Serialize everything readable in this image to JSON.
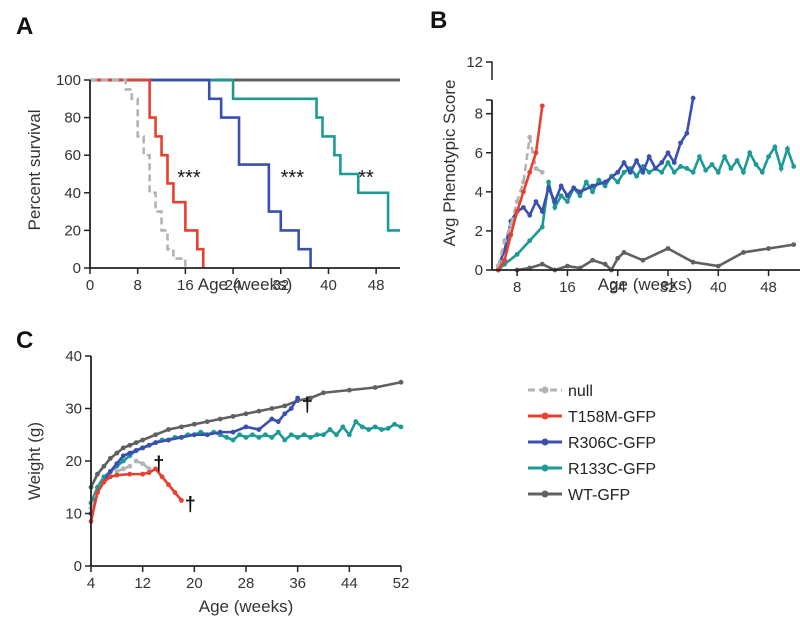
{
  "colors": {
    "null": "#b3b3b3",
    "T158M": "#e8402f",
    "R306C": "#3a4fb0",
    "R133C": "#1d9a96",
    "WT": "#606060"
  },
  "legend": [
    {
      "key": "null",
      "label": "null",
      "dashed": true
    },
    {
      "key": "T158M",
      "label": "T158M-GFP",
      "dashed": false
    },
    {
      "key": "R306C",
      "label": "R306C-GFP",
      "dashed": false
    },
    {
      "key": "R133C",
      "label": "R133C-GFP",
      "dashed": false
    },
    {
      "key": "WT",
      "label": "WT-GFP",
      "dashed": false
    }
  ],
  "chart_data": [
    {
      "panel": "A",
      "type": "line",
      "subtype": "kaplan-meier step",
      "xlabel": "Age (weeks)",
      "ylabel": "Percent survival",
      "xlim": [
        0,
        52
      ],
      "ylim": [
        0,
        100
      ],
      "xticks": [
        "0",
        "8",
        "16",
        "24",
        "32",
        "40",
        "48"
      ],
      "yticks": [
        "0",
        "20",
        "40",
        "60",
        "80",
        "100"
      ],
      "grid": false,
      "annotations": [
        {
          "text": "***",
          "x": 17.5,
          "y": 52
        },
        {
          "text": "***",
          "x": 35,
          "y": 52
        },
        {
          "text": "**",
          "x": 47,
          "y": 52
        }
      ],
      "series": [
        {
          "key": "null",
          "dashed": true,
          "x": [
            0,
            4,
            6,
            7,
            8,
            9,
            10,
            11,
            12,
            13,
            14,
            16
          ],
          "y": [
            100,
            100,
            95,
            90,
            70,
            60,
            40,
            30,
            20,
            10,
            5,
            0
          ]
        },
        {
          "key": "T158M",
          "dashed": false,
          "x": [
            0,
            9,
            10,
            11,
            12,
            13,
            14,
            16,
            18,
            19
          ],
          "y": [
            100,
            100,
            80,
            70,
            60,
            45,
            35,
            20,
            10,
            0
          ]
        },
        {
          "key": "R306C",
          "dashed": false,
          "x": [
            0,
            11,
            20,
            22,
            25,
            30,
            32,
            35,
            37
          ],
          "y": [
            100,
            100,
            90,
            80,
            55,
            30,
            20,
            10,
            0
          ]
        },
        {
          "key": "R133C",
          "dashed": false,
          "x": [
            0,
            11,
            24,
            38,
            39,
            41,
            42,
            45,
            50,
            52
          ],
          "y": [
            100,
            100,
            90,
            80,
            70,
            60,
            50,
            40,
            20,
            20
          ]
        },
        {
          "key": "WT",
          "dashed": false,
          "x": [
            0,
            52
          ],
          "y": [
            100,
            100
          ]
        }
      ]
    },
    {
      "panel": "B",
      "type": "line",
      "xlabel": "Age (weeks)",
      "ylabel": "Avg Phenotypic Score",
      "xlim": [
        4,
        53
      ],
      "ylim": [
        0,
        8.7
      ],
      "broken_axis_top_label": "12",
      "xticks": [
        "8",
        "16",
        "24",
        "32",
        "40",
        "48"
      ],
      "yticks": [
        "0",
        "2",
        "4",
        "6",
        "8"
      ],
      "grid": false,
      "series": [
        {
          "key": "null",
          "dashed": true,
          "x": [
            5,
            6,
            7,
            8,
            9,
            10,
            11,
            12
          ],
          "y": [
            0.2,
            1.5,
            2.3,
            3.5,
            4.5,
            6.8,
            5.2,
            5.0
          ]
        },
        {
          "key": "T158M",
          "dashed": false,
          "x": [
            5,
            6,
            7,
            8,
            9,
            10,
            11,
            12
          ],
          "y": [
            0,
            0.5,
            1.8,
            3.0,
            4.0,
            5.0,
            6.0,
            8.4
          ]
        },
        {
          "key": "R306C",
          "dashed": false,
          "x": [
            5,
            6,
            7,
            8,
            9,
            10,
            11,
            12,
            13,
            14,
            15,
            16,
            17,
            18,
            20,
            22,
            24,
            25,
            26,
            27,
            28,
            29,
            30,
            31,
            32,
            33,
            34,
            35,
            36
          ],
          "y": [
            0.2,
            1.0,
            2.5,
            3.0,
            3.2,
            2.8,
            3.5,
            3.0,
            4.2,
            3.5,
            4.3,
            3.8,
            4.2,
            4.0,
            4.3,
            4.5,
            5.0,
            5.5,
            5.0,
            5.6,
            5.0,
            5.8,
            5.2,
            5.5,
            6.0,
            5.5,
            6.5,
            7.0,
            8.8
          ]
        },
        {
          "key": "R133C",
          "dashed": false,
          "x": [
            5,
            6,
            8,
            10,
            12,
            13,
            14,
            15,
            16,
            17,
            18,
            19,
            20,
            21,
            22,
            23,
            24,
            25,
            26,
            27,
            28,
            29,
            30,
            31,
            32,
            33,
            34,
            35,
            36,
            37,
            38,
            39,
            40,
            41,
            42,
            43,
            44,
            45,
            46,
            47,
            48,
            49,
            50,
            51,
            52
          ],
          "y": [
            0,
            0.3,
            0.8,
            1.5,
            2.2,
            4.5,
            3.2,
            3.8,
            3.5,
            4.2,
            3.8,
            4.5,
            4.0,
            4.6,
            4.3,
            4.8,
            4.5,
            5.0,
            5.2,
            4.8,
            5.3,
            5.0,
            5.2,
            5.0,
            5.5,
            5.0,
            5.3,
            5.2,
            5.0,
            5.8,
            5.1,
            5.4,
            5.0,
            5.8,
            5.2,
            5.6,
            5.0,
            6.0,
            5.4,
            5.0,
            5.8,
            6.3,
            5.2,
            6.2,
            5.3
          ]
        },
        {
          "key": "WT",
          "dashed": false,
          "x": [
            8,
            10,
            12,
            14,
            16,
            18,
            20,
            22,
            23,
            24,
            25,
            28,
            32,
            36,
            40,
            44,
            48,
            52
          ],
          "y": [
            0,
            0.1,
            0.3,
            0,
            0.2,
            0.1,
            0.5,
            0.3,
            0,
            0.6,
            0.9,
            0.5,
            1.1,
            0.4,
            0.2,
            0.9,
            1.1,
            1.3
          ]
        }
      ]
    },
    {
      "panel": "C",
      "type": "line",
      "xlabel": "Age (weeks)",
      "ylabel": "Weight (g)",
      "xlim": [
        4,
        52
      ],
      "ylim": [
        0,
        40
      ],
      "xticks": [
        "4",
        "12",
        "20",
        "28",
        "36",
        "44",
        "52"
      ],
      "yticks": [
        "0",
        "10",
        "20",
        "30",
        "40"
      ],
      "grid": false,
      "annotations": [
        {
          "text": "†",
          "x": 14.5,
          "y": 19.5
        },
        {
          "text": "†",
          "x": 20,
          "y": 12
        },
        {
          "text": "†",
          "x": 37.5,
          "y": 31
        }
      ],
      "series": [
        {
          "key": "null",
          "dashed": true,
          "x": [
            4,
            5,
            6,
            7,
            8,
            9,
            10,
            11,
            12,
            13
          ],
          "y": [
            11,
            14,
            16,
            17,
            18,
            18.5,
            19,
            20,
            19.5,
            18.5
          ]
        },
        {
          "key": "T158M",
          "dashed": false,
          "x": [
            4,
            5,
            6,
            7,
            8,
            10,
            12,
            13,
            14,
            15,
            16,
            17,
            18
          ],
          "y": [
            8.5,
            14,
            16,
            17,
            17.3,
            17.5,
            17.5,
            17.8,
            18.5,
            17,
            15.5,
            14,
            12.5
          ]
        },
        {
          "key": "R306C",
          "dashed": false,
          "x": [
            4,
            5,
            6,
            7,
            8,
            9,
            10,
            11,
            12,
            13,
            14,
            16,
            18,
            20,
            22,
            24,
            26,
            28,
            30,
            32,
            33,
            34,
            35,
            36
          ],
          "y": [
            10,
            14,
            16,
            18,
            19.5,
            21,
            21.5,
            22,
            22.5,
            23,
            23.5,
            24,
            24.5,
            25,
            25,
            25.5,
            25.5,
            26.5,
            26,
            28,
            27.5,
            29,
            30,
            32
          ]
        },
        {
          "key": "R133C",
          "dashed": false,
          "x": [
            4,
            5,
            6,
            7,
            8,
            9,
            10,
            11,
            12,
            13,
            14,
            15,
            16,
            17,
            18,
            19,
            20,
            21,
            22,
            23,
            24,
            25,
            26,
            27,
            28,
            29,
            30,
            31,
            32,
            33,
            34,
            35,
            36,
            37,
            38,
            39,
            40,
            41,
            42,
            43,
            44,
            45,
            46,
            47,
            48,
            49,
            50,
            51,
            52
          ],
          "y": [
            12,
            15,
            17,
            18,
            19,
            20,
            21,
            22,
            22.5,
            23,
            23.5,
            24,
            24,
            24.5,
            24.5,
            25,
            25,
            25.5,
            25,
            25.5,
            25,
            24.5,
            24,
            25,
            24.5,
            25,
            24.5,
            25,
            24.5,
            25.5,
            24,
            25,
            24.5,
            25,
            24.5,
            25,
            25,
            26,
            25,
            26.5,
            25,
            27.5,
            26.5,
            26,
            26.5,
            26,
            26.2,
            27,
            26.5
          ]
        },
        {
          "key": "WT",
          "dashed": false,
          "x": [
            4,
            5,
            6,
            7,
            8,
            9,
            10,
            11,
            12,
            14,
            16,
            18,
            20,
            22,
            24,
            26,
            28,
            30,
            32,
            34,
            36,
            38,
            40,
            44,
            48,
            52
          ],
          "y": [
            15,
            17.5,
            19,
            20.5,
            21.5,
            22.5,
            23,
            23.5,
            24,
            25,
            26,
            26.5,
            27,
            27.5,
            28,
            28.5,
            29,
            29.5,
            30,
            30.5,
            31.5,
            32,
            33,
            33.5,
            34,
            35
          ]
        }
      ]
    }
  ],
  "panels": {
    "A": {
      "letter": "A",
      "sig1": "***",
      "sig2": "***",
      "sig3": "**"
    },
    "B": {
      "letter": "B"
    },
    "C": {
      "letter": "C",
      "dagger1": "†",
      "dagger2": "†",
      "dagger3": "†"
    }
  }
}
